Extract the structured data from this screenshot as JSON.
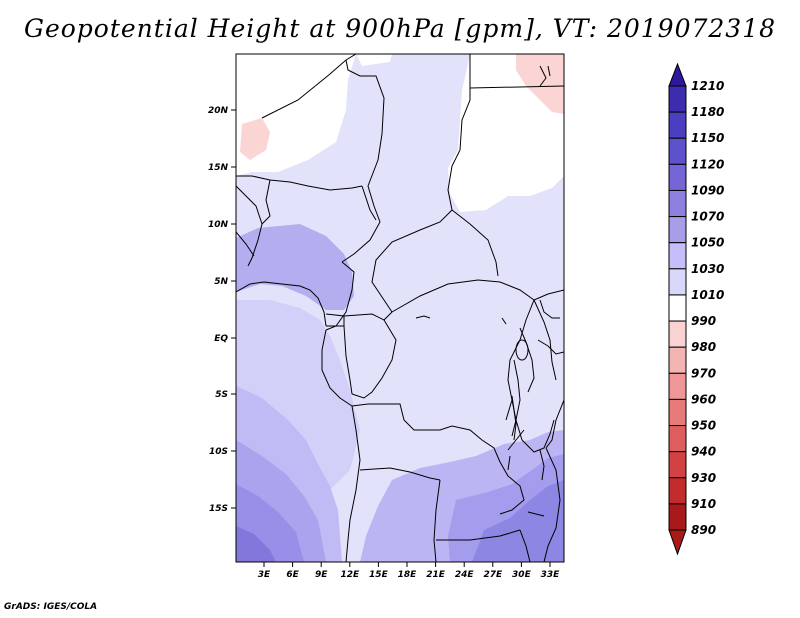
{
  "title": "Geopotential Height at 900hPa [gpm], VT: 2019072318",
  "footer": "GrADS: IGES/COLA",
  "map": {
    "lat_labels": [
      "20N",
      "15N",
      "10N",
      "5N",
      "EQ",
      "5S",
      "10S",
      "15S"
    ],
    "lon_labels": [
      "3E",
      "6E",
      "9E",
      "12E",
      "15E",
      "18E",
      "21E",
      "24E",
      "27E",
      "30E",
      "33E"
    ]
  },
  "colorbar": {
    "levels": [
      "1210",
      "1180",
      "1150",
      "1120",
      "1090",
      "1070",
      "1050",
      "1030",
      "1010",
      "990",
      "980",
      "970",
      "960",
      "950",
      "940",
      "930",
      "910",
      "890"
    ],
    "colors": [
      "#2c1a9a",
      "#3c2cae",
      "#4c3ec0",
      "#5e52cc",
      "#7466d6",
      "#8c80e0",
      "#a89ee8",
      "#c4befa",
      "#d8d8fb",
      "#ffffff",
      "#fbd2d2",
      "#f5b4b4",
      "#ef9696",
      "#e77a7a",
      "#de5e5e",
      "#d24242",
      "#c22c2c",
      "#a81a1a"
    ]
  }
}
